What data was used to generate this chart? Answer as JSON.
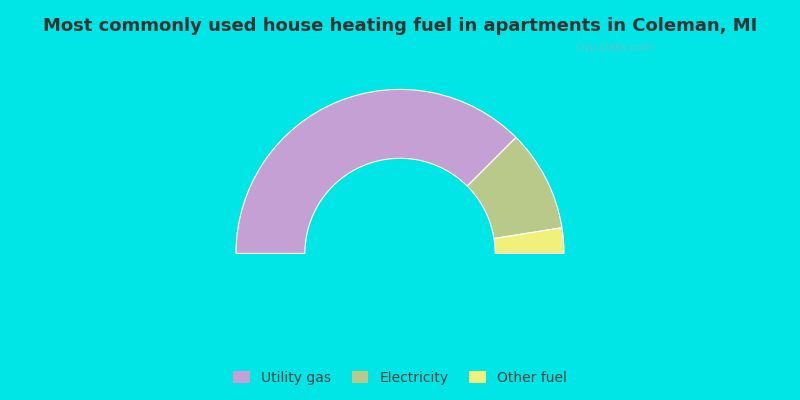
{
  "title": "Most commonly used house heating fuel in apartments in Coleman, MI",
  "segments": [
    {
      "label": "Utility gas",
      "value": 75,
      "color": "#c4a0d4"
    },
    {
      "label": "Electricity",
      "value": 20,
      "color": "#b8c98a"
    },
    {
      "label": "Other fuel",
      "value": 5,
      "color": "#f0f07a"
    }
  ],
  "background_cyan": "#00e5e5",
  "background_chart_color": "#cce8d8",
  "title_color": "#333333",
  "title_fontsize": 13,
  "legend_fontsize": 10,
  "watermark": "City-Data.com"
}
